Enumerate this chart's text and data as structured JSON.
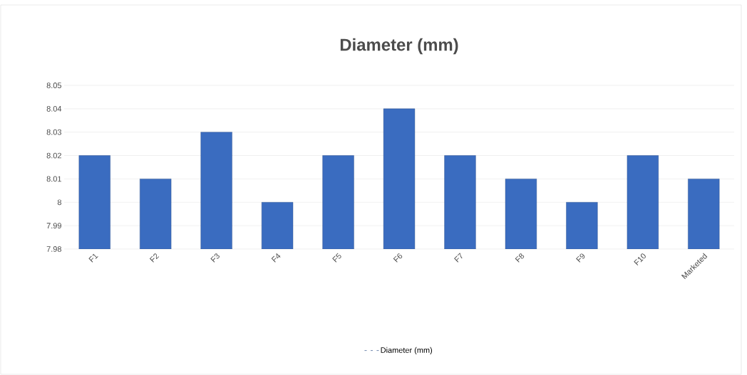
{
  "chart_data": {
    "type": "bar",
    "title": "Diameter (mm)",
    "categories": [
      "F1",
      "F2",
      "F3",
      "F4",
      "F5",
      "F6",
      "F7",
      "F8",
      "F9",
      "F10",
      "Marketed"
    ],
    "series": [
      {
        "name": "Diameter (mm)",
        "color": "#3a6cc0",
        "values": [
          8.02,
          8.01,
          8.03,
          8.0,
          8.02,
          8.04,
          8.02,
          8.01,
          8.0,
          8.02,
          8.01
        ]
      }
    ],
    "ylim": [
      7.98,
      8.05
    ],
    "yticks": [
      7.98,
      7.99,
      8,
      8.01,
      8.02,
      8.03,
      8.04,
      8.05
    ],
    "grid": "y",
    "legend": "bottom"
  }
}
